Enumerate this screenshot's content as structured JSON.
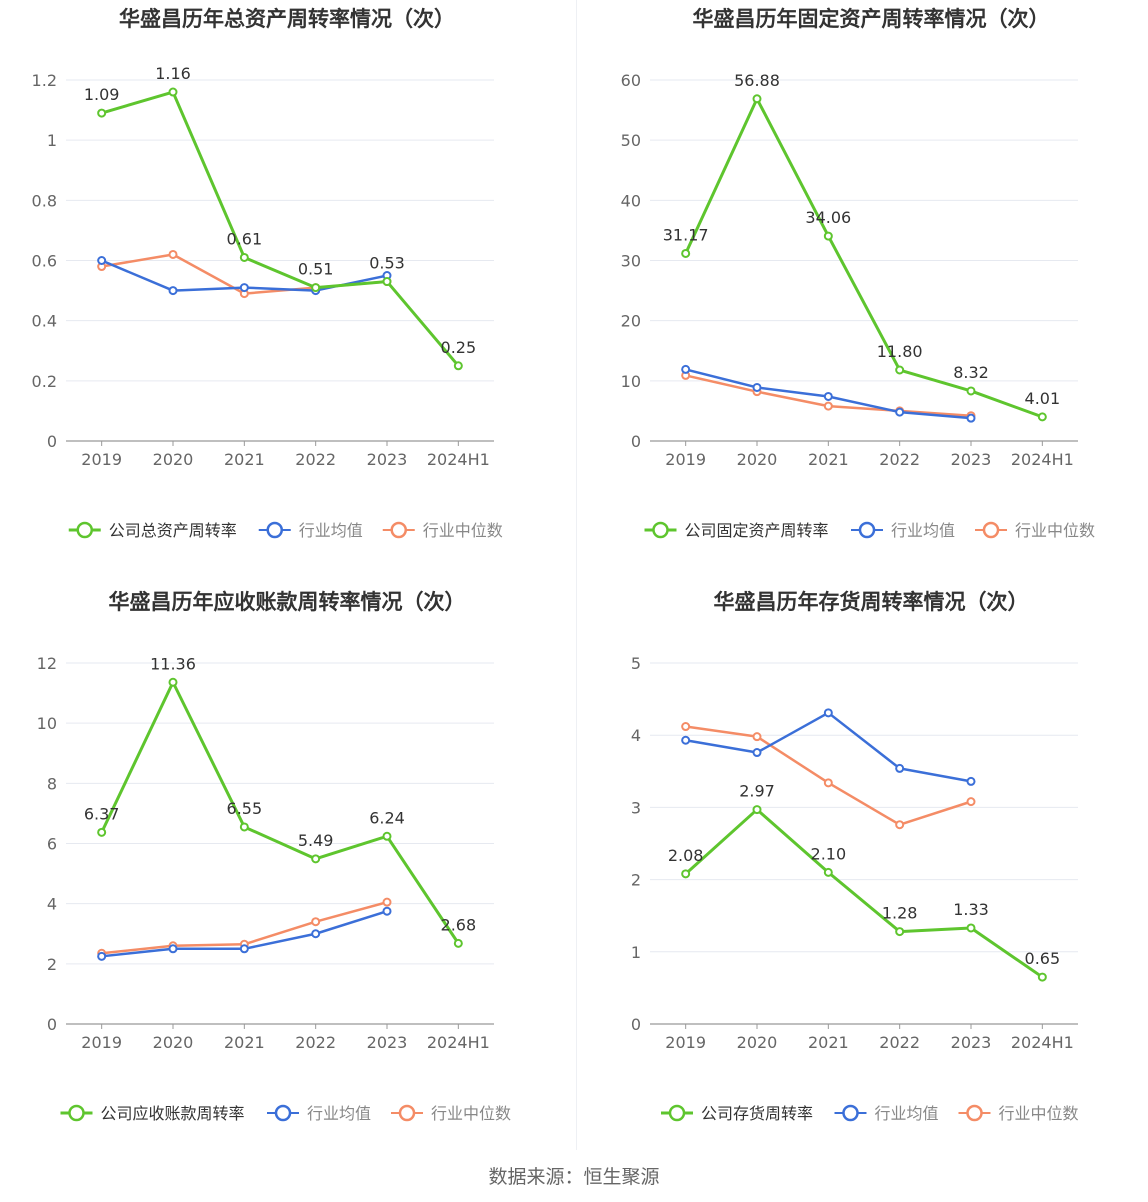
{
  "footer": {
    "source": "数据来源：恒生聚源"
  },
  "colors": {
    "company": "#5ec52e",
    "avg": "#3b6fd8",
    "median": "#f48c66",
    "grid": "#e6e9f0",
    "axis": "#999999",
    "text": "#666666"
  },
  "charts": [
    {
      "title": "华盛昌历年总资产周转率情况（次）",
      "legend": {
        "company": "公司总资产周转率",
        "avg": "行业均值",
        "median": "行业中位数"
      },
      "chart_data": {
        "type": "line",
        "categories": [
          "2019",
          "2020",
          "2021",
          "2022",
          "2023",
          "2024H1"
        ],
        "ylim": [
          0,
          1.2
        ],
        "yticks": [
          "0",
          "0.2",
          "0.4",
          "0.6",
          "0.8",
          "1",
          "1.2"
        ],
        "series": [
          {
            "name": "公司总资产周转率",
            "values": [
              1.09,
              1.16,
              0.61,
              0.51,
              0.53,
              0.25
            ],
            "labels": [
              "1.09",
              "1.16",
              "0.61",
              "0.51",
              "0.53",
              "0.25"
            ]
          },
          {
            "name": "行业均值",
            "values": [
              0.6,
              0.5,
              0.51,
              0.5,
              0.55,
              null
            ]
          },
          {
            "name": "行业中位数",
            "values": [
              0.58,
              0.62,
              0.49,
              0.51,
              0.53,
              null
            ]
          }
        ]
      }
    },
    {
      "title": "华盛昌历年固定资产周转率情况（次）",
      "legend": {
        "company": "公司固定资产周转率",
        "avg": "行业均值",
        "median": "行业中位数"
      },
      "chart_data": {
        "type": "line",
        "categories": [
          "2019",
          "2020",
          "2021",
          "2022",
          "2023",
          "2024H1"
        ],
        "ylim": [
          0,
          60
        ],
        "yticks": [
          "0",
          "10",
          "20",
          "30",
          "40",
          "50",
          "60"
        ],
        "series": [
          {
            "name": "公司固定资产周转率",
            "values": [
              31.17,
              56.88,
              34.06,
              11.8,
              8.32,
              4.01
            ],
            "labels": [
              "31.17",
              "56.88",
              "34.06",
              "11.80",
              "8.32",
              "4.01"
            ]
          },
          {
            "name": "行业均值",
            "values": [
              11.9,
              8.9,
              7.4,
              4.8,
              3.8,
              null
            ]
          },
          {
            "name": "行业中位数",
            "values": [
              10.9,
              8.2,
              5.8,
              5.0,
              4.2,
              null
            ]
          }
        ]
      }
    },
    {
      "title": "华盛昌历年应收账款周转率情况（次）",
      "legend": {
        "company": "公司应收账款周转率",
        "avg": "行业均值",
        "median": "行业中位数"
      },
      "chart_data": {
        "type": "line",
        "categories": [
          "2019",
          "2020",
          "2021",
          "2022",
          "2023",
          "2024H1"
        ],
        "ylim": [
          0,
          12
        ],
        "yticks": [
          "0",
          "2",
          "4",
          "6",
          "8",
          "10",
          "12"
        ],
        "series": [
          {
            "name": "公司应收账款周转率",
            "values": [
              6.37,
              11.36,
              6.55,
              5.49,
              6.24,
              2.68
            ],
            "labels": [
              "6.37",
              "11.36",
              "6.55",
              "5.49",
              "6.24",
              "2.68"
            ]
          },
          {
            "name": "行业均值",
            "values": [
              2.25,
              2.5,
              2.5,
              3.0,
              3.75,
              null
            ]
          },
          {
            "name": "行业中位数",
            "values": [
              2.35,
              2.6,
              2.65,
              3.4,
              4.05,
              null
            ]
          }
        ]
      }
    },
    {
      "title": "华盛昌历年存货周转率情况（次）",
      "legend": {
        "company": "公司存货周转率",
        "avg": "行业均值",
        "median": "行业中位数"
      },
      "chart_data": {
        "type": "line",
        "categories": [
          "2019",
          "2020",
          "2021",
          "2022",
          "2023",
          "2024H1"
        ],
        "ylim": [
          0,
          5
        ],
        "yticks": [
          "0",
          "1",
          "2",
          "3",
          "4",
          "5"
        ],
        "series": [
          {
            "name": "公司存货周转率",
            "values": [
              2.08,
              2.97,
              2.1,
              1.28,
              1.33,
              0.65
            ],
            "labels": [
              "2.08",
              "2.97",
              "2.10",
              "1.28",
              "1.33",
              "0.65"
            ]
          },
          {
            "name": "行业均值",
            "values": [
              3.93,
              3.76,
              4.31,
              3.54,
              3.36,
              null
            ]
          },
          {
            "name": "行业中位数",
            "values": [
              4.12,
              3.98,
              3.34,
              2.76,
              3.08,
              null
            ]
          }
        ]
      }
    }
  ]
}
